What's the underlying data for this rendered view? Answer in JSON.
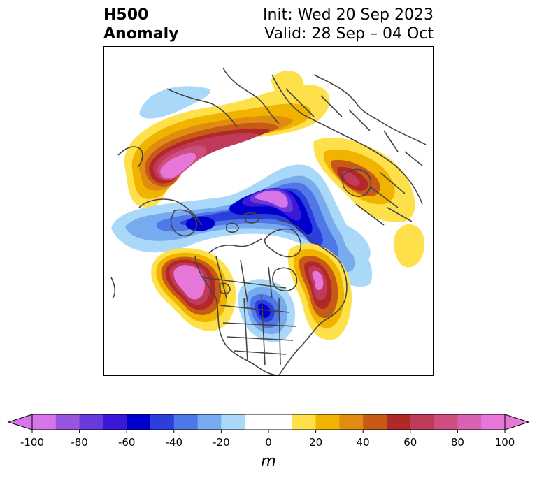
{
  "title": {
    "left_line1": "H500",
    "left_line2": "Anomaly",
    "right_line1": "Init: Wed 20 Sep 2023",
    "right_line2": "Valid: 28 Sep – 04 Oct"
  },
  "colorbar": {
    "unit": "m",
    "min": -100,
    "max": 100,
    "step": 10,
    "tick_values": [
      -100,
      -80,
      -60,
      -40,
      -20,
      0,
      20,
      40,
      60,
      80,
      100
    ],
    "tick_labels": [
      "-100",
      "-80",
      "-60",
      "-40",
      "-20",
      "0",
      "20",
      "40",
      "60",
      "80",
      "100"
    ],
    "colors": [
      "#d675e8",
      "#9a55e0",
      "#6a39dc",
      "#3a18d6",
      "#0000cc",
      "#2c3fdc",
      "#4f78e6",
      "#78aaf0",
      "#aad8f8",
      "#ffffff",
      "#ffffff",
      "#fde04a",
      "#f0b400",
      "#e08c10",
      "#c85a18",
      "#b02828",
      "#c03a5a",
      "#d04d80",
      "#da60b0",
      "#e676d8"
    ],
    "extend": "both"
  },
  "map": {
    "projection": "north-polar-stereographic",
    "anomaly_features": [
      {
        "name": "Siberia ridge arc",
        "sign": "positive",
        "peak": 60
      },
      {
        "name": "NE Pacific ridge",
        "sign": "positive",
        "peak": 100
      },
      {
        "name": "Arctic low",
        "sign": "negative",
        "peak": -100
      },
      {
        "name": "Scandinavia ridge",
        "sign": "positive",
        "peak": 70
      },
      {
        "name": "W North America ridge",
        "sign": "positive",
        "peak": 100
      },
      {
        "name": "Central US trough",
        "sign": "negative",
        "peak": -70
      },
      {
        "name": "Eastern Canada ridge",
        "sign": "positive",
        "peak": 80
      }
    ]
  }
}
